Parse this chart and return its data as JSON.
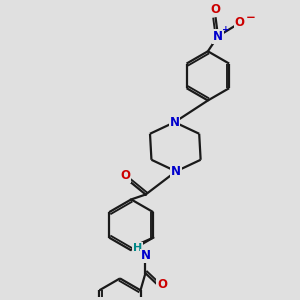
{
  "bg_color": "#e0e0e0",
  "bond_color": "#1a1a1a",
  "N_color": "#0000cc",
  "O_color": "#cc0000",
  "H_color": "#008888",
  "lw": 1.6,
  "dbo": 0.055,
  "fs": 8.5,
  "figsize": [
    3.0,
    3.0
  ],
  "dpi": 100,
  "xlim": [
    0,
    10
  ],
  "ylim": [
    0,
    10
  ]
}
